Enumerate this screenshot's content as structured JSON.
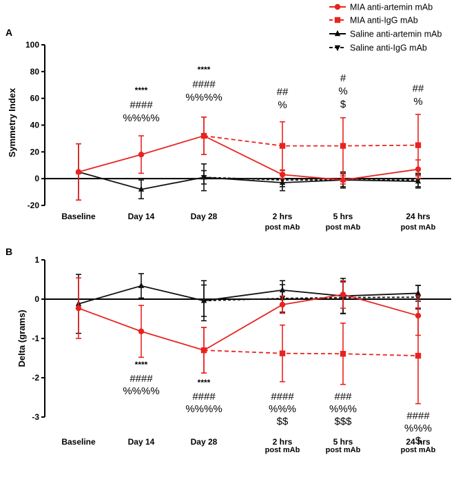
{
  "chart_data": {
    "legend": [
      {
        "name": "MIA anti-artemin mAb",
        "color": "#e8231f",
        "line": "solid",
        "marker": "circle"
      },
      {
        "name": "MIA anti-IgG mAb",
        "color": "#e8231f",
        "line": "dashed",
        "marker": "square"
      },
      {
        "name": "Saline anti-artemin mAb",
        "color": "#000000",
        "line": "solid",
        "marker": "triangle-up"
      },
      {
        "name": "Saline anti-IgG mAb",
        "color": "#000000",
        "line": "dashed",
        "marker": "triangle-down"
      }
    ],
    "panels": [
      {
        "panel_label": "A",
        "type": "line",
        "ylabel": "Symmetry Index",
        "ylim": [
          -20,
          100
        ],
        "yticks": [
          "-20",
          "0",
          "20",
          "40",
          "60",
          "80",
          "100"
        ],
        "categories": [
          {
            "line1": "Baseline",
            "line2": ""
          },
          {
            "line1": "Day 14",
            "line2": ""
          },
          {
            "line1": "Day 28",
            "line2": ""
          },
          {
            "line1": "2 hrs",
            "line2": "post mAb"
          },
          {
            "line1": "5 hrs",
            "line2": "post mAb"
          },
          {
            "line1": "24 hrs",
            "line2": "post mAb"
          }
        ],
        "series": [
          {
            "name": "MIA anti-artemin mAb",
            "x": [
              0,
              1,
              2,
              3,
              4,
              5
            ],
            "values": [
              5,
              18,
              32,
              3,
              -1,
              7
            ],
            "err": [
              21,
              14,
              14,
              3,
              3,
              7
            ]
          },
          {
            "name": "MIA anti-IgG mAb",
            "x": [
              2,
              3,
              4,
              5
            ],
            "values": [
              32,
              24.5,
              24.5,
              25
            ],
            "err": [
              14,
              18,
              21,
              23
            ]
          },
          {
            "name": "Saline anti-artemin mAb",
            "x": [
              0,
              1,
              2,
              3,
              4,
              5
            ],
            "values": [
              5,
              -8,
              1,
              -3,
              -1,
              -2
            ],
            "err": [
              21,
              7,
              10,
              6,
              6,
              5
            ]
          },
          {
            "name": "Saline anti-IgG mAb",
            "x": [
              2,
              3,
              4,
              5
            ],
            "values": [
              1,
              -1,
              -1,
              -1
            ],
            "err": [
              5,
              5,
              5,
              5
            ]
          }
        ],
        "annotations": [
          {
            "x": 1,
            "lines": [
              "****",
              "####",
              "%%%%"
            ]
          },
          {
            "x": 2,
            "lines": [
              "****",
              "####",
              "%%%%"
            ]
          },
          {
            "x": 3,
            "lines": [
              "##",
              "%"
            ]
          },
          {
            "x": 4,
            "lines": [
              "#",
              "%",
              "$"
            ]
          },
          {
            "x": 5,
            "lines": [
              "##",
              "%"
            ]
          }
        ]
      },
      {
        "panel_label": "B",
        "type": "line",
        "ylabel": "Delta (grams)",
        "ylim": [
          -3,
          1
        ],
        "yticks": [
          "-3",
          "-2",
          "-1",
          "0",
          "1"
        ],
        "categories": [
          {
            "line1": "Baseline",
            "line2": ""
          },
          {
            "line1": "Day 14",
            "line2": ""
          },
          {
            "line1": "Day 28",
            "line2": ""
          },
          {
            "line1": "2 hrs",
            "line2": "post mAb"
          },
          {
            "line1": "5 hrs",
            "line2": "post mAb"
          },
          {
            "line1": "24 hrs",
            "line2": "post mAb"
          }
        ],
        "series": [
          {
            "name": "MIA anti-artemin mAb",
            "x": [
              0,
              1,
              2,
              3,
              4,
              5
            ],
            "values": [
              -0.23,
              -0.82,
              -1.3,
              -0.14,
              0.12,
              -0.42
            ],
            "err": [
              0.77,
              0.66,
              0.58,
              0.22,
              0.35,
              0.5
            ]
          },
          {
            "name": "MIA anti-IgG mAb",
            "x": [
              2,
              3,
              4,
              5
            ],
            "values": [
              -1.3,
              -1.38,
              -1.39,
              -1.44
            ],
            "err": [
              0.58,
              0.72,
              0.78,
              1.22
            ]
          },
          {
            "name": "Saline anti-artemin mAb",
            "x": [
              0,
              1,
              2,
              3,
              4,
              5
            ],
            "values": [
              -0.12,
              0.34,
              -0.04,
              0.23,
              0.08,
              0.15
            ],
            "err": [
              0.75,
              0.31,
              0.51,
              0.24,
              0.45,
              0.2
            ]
          },
          {
            "name": "Saline anti-IgG mAb",
            "x": [
              2,
              3,
              4,
              5
            ],
            "values": [
              -0.04,
              0.02,
              0.04,
              0.05
            ],
            "err": [
              0.4,
              0.35,
              0.4,
              0.3
            ]
          }
        ],
        "annotations": [
          {
            "x": 1,
            "lines": [
              "****",
              "####",
              "%%%%"
            ]
          },
          {
            "x": 2,
            "lines": [
              "****",
              "####",
              "%%%%"
            ]
          },
          {
            "x": 3,
            "lines": [
              "####",
              "%%%",
              "$$"
            ]
          },
          {
            "x": 4,
            "lines": [
              "###",
              "%%%",
              "$$$"
            ]
          },
          {
            "x": 5,
            "lines": [
              "####",
              "%%%",
              "$"
            ]
          }
        ]
      }
    ]
  }
}
